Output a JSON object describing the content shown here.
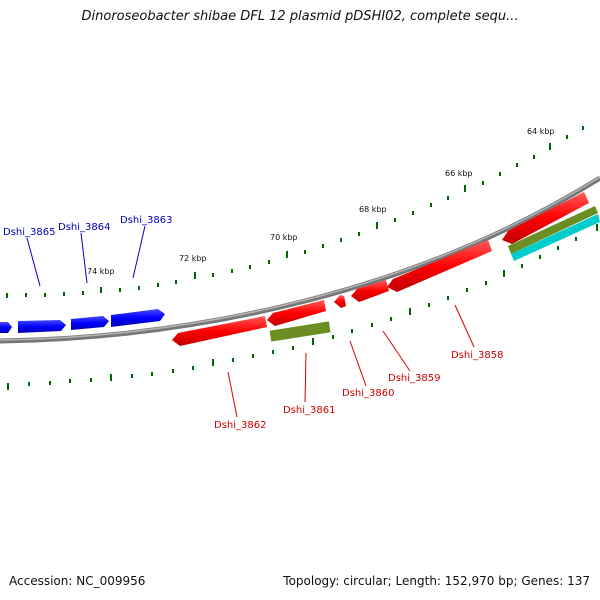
{
  "title": "Dinoroseobacter shibae DFL 12 plasmid pDSHI02, complete sequ...",
  "footer": {
    "accession": "Accession: NC_009956",
    "summary": "Topology: circular; Length: 152,970 bp; Genes: 137"
  },
  "scale_labels": [
    "64 kbp",
    "66 kbp",
    "68 kbp",
    "70 kbp",
    "72 kbp",
    "74 kbp"
  ],
  "colors": {
    "forward_gene": "#0000ff",
    "reverse_gene": "#ff0000",
    "feature_olive": "#6b8e23",
    "feature_cyan": "#00cccc",
    "backbone": "#808080",
    "ticks": "#006400"
  },
  "genes": {
    "forward": [
      "Dshi_3865",
      "Dshi_3864",
      "Dshi_3863"
    ],
    "reverse": [
      "Dshi_3862",
      "Dshi_3861",
      "Dshi_3860",
      "Dshi_3859",
      "Dshi_3858"
    ]
  }
}
